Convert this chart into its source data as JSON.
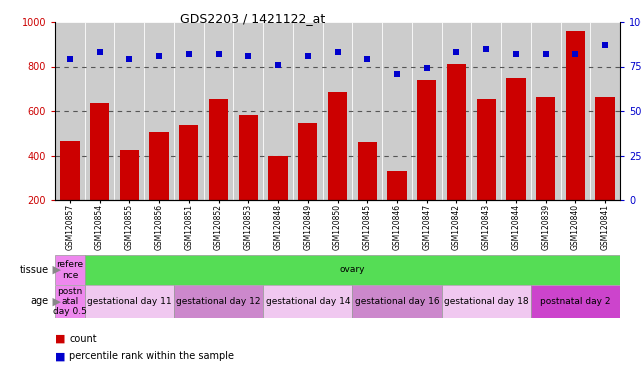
{
  "title": "GDS2203 / 1421122_at",
  "samples": [
    "GSM120857",
    "GSM120854",
    "GSM120855",
    "GSM120856",
    "GSM120851",
    "GSM120852",
    "GSM120853",
    "GSM120848",
    "GSM120849",
    "GSM120850",
    "GSM120845",
    "GSM120846",
    "GSM120847",
    "GSM120842",
    "GSM120843",
    "GSM120844",
    "GSM120839",
    "GSM120840",
    "GSM120841"
  ],
  "counts": [
    465,
    635,
    425,
    505,
    535,
    655,
    580,
    400,
    545,
    685,
    460,
    330,
    740,
    810,
    655,
    750,
    665,
    960,
    665
  ],
  "percentiles": [
    79,
    83,
    79,
    81,
    82,
    82,
    81,
    76,
    81,
    83,
    79,
    71,
    74,
    83,
    85,
    82,
    82,
    82,
    87
  ],
  "bar_color": "#cc0000",
  "dot_color": "#0000cc",
  "dotted_lines": [
    400,
    600,
    800
  ],
  "tissue_segments": [
    {
      "text": "refere\nnce",
      "color": "#ee88ee",
      "start": 0,
      "end": 1
    },
    {
      "text": "ovary",
      "color": "#55dd55",
      "start": 1,
      "end": 19
    }
  ],
  "age_segments": [
    {
      "text": "postn\natal\nday 0.5",
      "color": "#ee88ee",
      "start": 0,
      "end": 1
    },
    {
      "text": "gestational day 11",
      "color": "#f0c8f0",
      "start": 1,
      "end": 4
    },
    {
      "text": "gestational day 12",
      "color": "#cc88cc",
      "start": 4,
      "end": 7
    },
    {
      "text": "gestational day 14",
      "color": "#f0c8f0",
      "start": 7,
      "end": 10
    },
    {
      "text": "gestational day 16",
      "color": "#cc88cc",
      "start": 10,
      "end": 13
    },
    {
      "text": "gestational day 18",
      "color": "#f0c8f0",
      "start": 13,
      "end": 16
    },
    {
      "text": "postnatal day 2",
      "color": "#cc44cc",
      "start": 16,
      "end": 19
    }
  ],
  "tick_color_left": "#cc0000",
  "tick_color_right": "#0000cc",
  "plot_bg": "#ffffff",
  "fig_bg": "#ffffff",
  "xticklabel_bg": "#cccccc"
}
